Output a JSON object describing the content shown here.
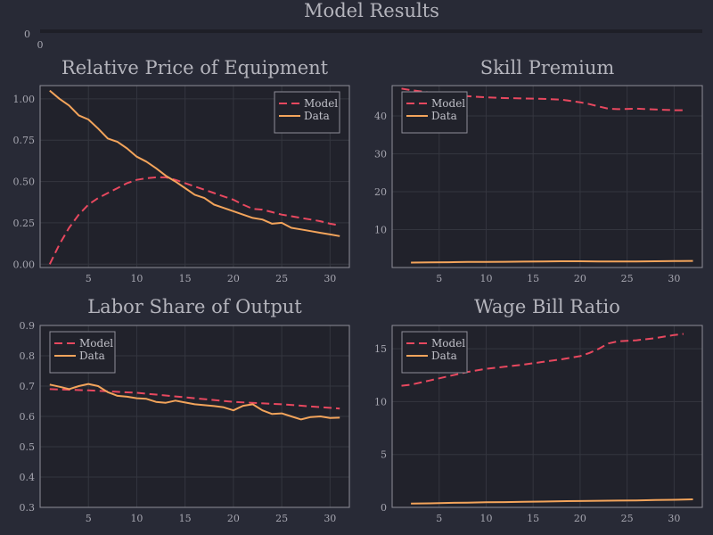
{
  "figure": {
    "title": "Model Results",
    "background": "#282a36",
    "colors": {
      "model": "#e8485f",
      "data": "#f3a45b"
    }
  },
  "chart_data": [
    {
      "type": "line",
      "title": "",
      "xlim": [
        0,
        1
      ],
      "ylim": [
        0,
        1
      ],
      "xticks": [
        0
      ],
      "yticks": [
        0
      ],
      "grid": false,
      "legend": null,
      "series": []
    },
    {
      "type": "line",
      "title": "Relative Price of Equipment",
      "xlim": [
        0,
        32
      ],
      "ylim": [
        -0.02,
        1.08
      ],
      "xticks": [
        5,
        10,
        15,
        20,
        25,
        30
      ],
      "yticks": [
        0.0,
        0.25,
        0.5,
        0.75,
        1.0
      ],
      "ytick_labels": [
        "0.00",
        "0.25",
        "0.50",
        "0.75",
        "1.00"
      ],
      "grid": true,
      "legend": "top-right",
      "series": [
        {
          "name": "Model",
          "style": "dashed",
          "color": "#e8485f",
          "x": [
            1,
            2,
            3,
            4,
            5,
            6,
            7,
            8,
            9,
            10,
            11,
            12,
            13,
            14,
            15,
            16,
            17,
            18,
            19,
            20,
            21,
            22,
            23,
            24,
            25,
            26,
            27,
            28,
            29,
            30,
            31
          ],
          "y": [
            0.0,
            0.12,
            0.22,
            0.3,
            0.36,
            0.4,
            0.43,
            0.46,
            0.49,
            0.51,
            0.52,
            0.525,
            0.525,
            0.51,
            0.49,
            0.47,
            0.45,
            0.43,
            0.41,
            0.39,
            0.36,
            0.335,
            0.33,
            0.315,
            0.3,
            0.29,
            0.28,
            0.27,
            0.26,
            0.245,
            0.235
          ]
        },
        {
          "name": "Data",
          "style": "solid",
          "color": "#f3a45b",
          "x": [
            1,
            2,
            3,
            4,
            5,
            6,
            7,
            8,
            9,
            10,
            11,
            12,
            13,
            14,
            15,
            16,
            17,
            18,
            19,
            20,
            21,
            22,
            23,
            24,
            25,
            26,
            27,
            28,
            29,
            30,
            31
          ],
          "y": [
            1.05,
            1.0,
            0.96,
            0.9,
            0.875,
            0.82,
            0.76,
            0.74,
            0.7,
            0.65,
            0.62,
            0.58,
            0.535,
            0.5,
            0.46,
            0.42,
            0.4,
            0.36,
            0.34,
            0.32,
            0.3,
            0.28,
            0.27,
            0.245,
            0.25,
            0.22,
            0.21,
            0.2,
            0.19,
            0.18,
            0.17
          ]
        }
      ]
    },
    {
      "type": "line",
      "title": "Skill Premium",
      "xlim": [
        0,
        33
      ],
      "ylim": [
        0,
        48
      ],
      "xticks": [
        5,
        10,
        15,
        20,
        25,
        30
      ],
      "yticks": [
        10,
        20,
        30,
        40
      ],
      "grid": true,
      "legend": "top-left",
      "series": [
        {
          "name": "Model",
          "style": "dashed",
          "color": "#e8485f",
          "x": [
            1,
            2,
            4,
            6,
            8,
            10,
            12,
            14,
            16,
            18,
            20,
            21,
            22,
            23,
            24,
            26,
            28,
            30,
            31
          ],
          "y": [
            47.2,
            46.8,
            46.2,
            45.6,
            45.2,
            44.9,
            44.7,
            44.6,
            44.5,
            44.3,
            43.6,
            43.1,
            42.5,
            41.9,
            41.8,
            41.9,
            41.7,
            41.5,
            41.5
          ]
        },
        {
          "name": "Data",
          "style": "solid",
          "color": "#f3a45b",
          "x": [
            2,
            4,
            6,
            8,
            10,
            12,
            14,
            16,
            18,
            20,
            22,
            24,
            26,
            28,
            30,
            32
          ],
          "y": [
            1.3,
            1.35,
            1.4,
            1.45,
            1.45,
            1.5,
            1.55,
            1.6,
            1.65,
            1.65,
            1.6,
            1.6,
            1.6,
            1.65,
            1.7,
            1.75
          ]
        }
      ]
    },
    {
      "type": "line",
      "title": "Labor Share of Output",
      "xlim": [
        0,
        32
      ],
      "ylim": [
        0.3,
        0.9
      ],
      "xticks": [
        5,
        10,
        15,
        20,
        25,
        30
      ],
      "yticks": [
        0.3,
        0.4,
        0.5,
        0.6,
        0.7,
        0.8,
        0.9
      ],
      "grid": true,
      "legend": "top-left",
      "series": [
        {
          "name": "Model",
          "style": "dashed",
          "color": "#e8485f",
          "x": [
            1,
            5,
            10,
            15,
            20,
            25,
            31
          ],
          "y": [
            0.69,
            0.686,
            0.678,
            0.663,
            0.648,
            0.64,
            0.626
          ]
        },
        {
          "name": "Data",
          "style": "solid",
          "color": "#f3a45b",
          "x": [
            1,
            2,
            3,
            4,
            5,
            6,
            7,
            8,
            9,
            10,
            11,
            12,
            13,
            14,
            15,
            16,
            17,
            18,
            19,
            20,
            21,
            22,
            23,
            24,
            25,
            26,
            27,
            28,
            29,
            30,
            31
          ],
          "y": [
            0.705,
            0.698,
            0.69,
            0.7,
            0.707,
            0.7,
            0.68,
            0.668,
            0.665,
            0.66,
            0.658,
            0.648,
            0.645,
            0.652,
            0.646,
            0.64,
            0.637,
            0.634,
            0.63,
            0.62,
            0.635,
            0.64,
            0.62,
            0.608,
            0.61,
            0.6,
            0.59,
            0.598,
            0.6,
            0.595,
            0.596
          ]
        }
      ]
    },
    {
      "type": "line",
      "title": "Wage Bill Ratio",
      "xlim": [
        0,
        33
      ],
      "ylim": [
        0,
        17.2
      ],
      "xticks": [
        5,
        10,
        15,
        20,
        25,
        30
      ],
      "yticks": [
        0,
        5,
        10,
        15
      ],
      "grid": true,
      "legend": "top-left",
      "series": [
        {
          "name": "Model",
          "style": "dashed",
          "color": "#e8485f",
          "x": [
            1,
            2,
            4,
            6,
            8,
            10,
            12,
            14,
            16,
            18,
            20,
            21,
            22,
            23,
            24,
            26,
            28,
            30,
            31
          ],
          "y": [
            11.5,
            11.6,
            12.0,
            12.4,
            12.8,
            13.1,
            13.3,
            13.5,
            13.75,
            14.0,
            14.3,
            14.6,
            15.0,
            15.5,
            15.7,
            15.8,
            16.0,
            16.3,
            16.4
          ]
        },
        {
          "name": "Data",
          "style": "solid",
          "color": "#f3a45b",
          "x": [
            2,
            4,
            6,
            8,
            10,
            12,
            14,
            16,
            18,
            20,
            22,
            24,
            26,
            28,
            30,
            32
          ],
          "y": [
            0.35,
            0.38,
            0.42,
            0.45,
            0.48,
            0.5,
            0.52,
            0.55,
            0.58,
            0.6,
            0.62,
            0.64,
            0.66,
            0.7,
            0.72,
            0.76
          ]
        }
      ]
    }
  ]
}
